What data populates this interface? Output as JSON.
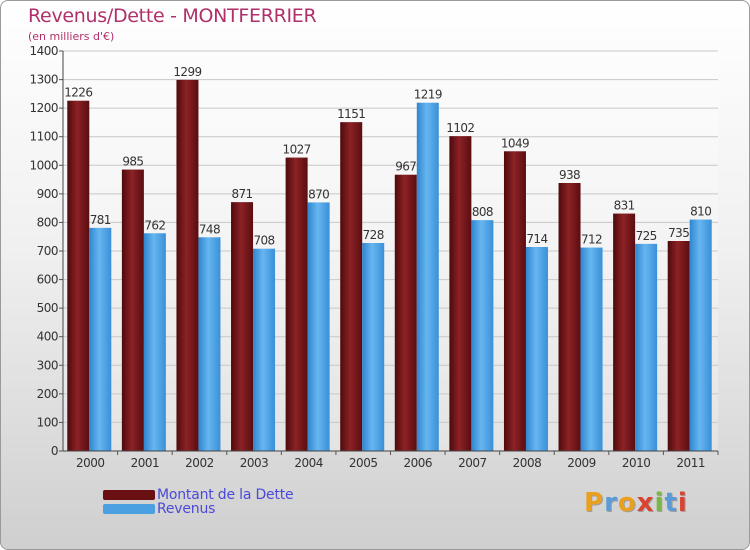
{
  "header": {
    "title": "Revenus/Dette - MONTFERRIER",
    "subtitle": "(en milliers d'€)"
  },
  "legend": [
    {
      "label": "Montant de la Dette",
      "color": "#6a0f12"
    },
    {
      "label": "Revenus",
      "color": "#4aa0e0"
    }
  ],
  "logo": {
    "text": "Proxiti"
  },
  "chart_data": {
    "type": "bar",
    "title": "Revenus/Dette - MONTFERRIER",
    "subtitle": "(en milliers d'€)",
    "xlabel": "",
    "ylabel": "",
    "ylim": [
      0,
      1400
    ],
    "yticks": [
      0,
      100,
      200,
      300,
      400,
      500,
      600,
      700,
      800,
      900,
      1000,
      1100,
      1200,
      1300,
      1400
    ],
    "grid": true,
    "legend_position": "bottom-left",
    "categories": [
      "2000",
      "2001",
      "2002",
      "2003",
      "2004",
      "2005",
      "2006",
      "2007",
      "2008",
      "2009",
      "2010",
      "2011"
    ],
    "series": [
      {
        "name": "Montant de la Dette",
        "color": "#6a0f12",
        "values": [
          1226,
          985,
          1299,
          871,
          1027,
          1151,
          967,
          1102,
          1049,
          938,
          831,
          735
        ]
      },
      {
        "name": "Revenus",
        "color": "#4aa0e0",
        "values": [
          781,
          762,
          748,
          708,
          870,
          728,
          1219,
          808,
          714,
          712,
          725,
          810
        ]
      }
    ]
  }
}
